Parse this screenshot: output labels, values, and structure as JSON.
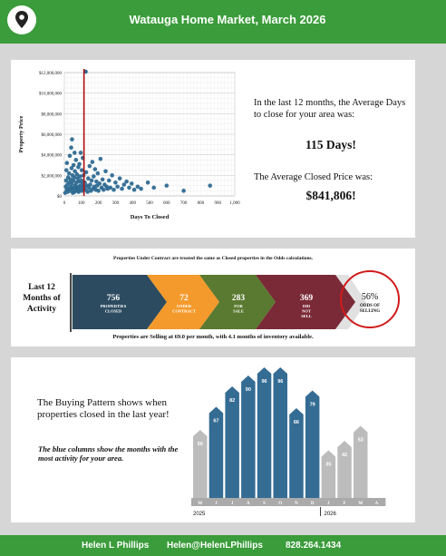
{
  "header": {
    "title": "Watauga Home Market, March 2026",
    "icon": "map-pin-icon"
  },
  "chart_data": [
    {
      "type": "scatter",
      "xlabel": "Days To Closed",
      "ylabel": "Property Price",
      "xlim": [
        0,
        1000
      ],
      "ylim": [
        0,
        12000000
      ],
      "x_ticks": [
        "0",
        "100",
        "200",
        "300",
        "400",
        "500",
        "600",
        "700",
        "800",
        "900",
        "1,000"
      ],
      "y_ticks": [
        "$0",
        "$2,000,000",
        "$4,000,000",
        "$6,000,000",
        "$8,000,000",
        "$10,000,000",
        "$12,000,000"
      ],
      "grid": true,
      "reference_line_x": 115,
      "reference_color": "#b01010",
      "point_color": "#2e6a92",
      "points": [
        [
          5,
          300000
        ],
        [
          8,
          900000
        ],
        [
          10,
          1500000
        ],
        [
          12,
          2500000
        ],
        [
          14,
          600000
        ],
        [
          15,
          3200000
        ],
        [
          18,
          1100000
        ],
        [
          20,
          400000
        ],
        [
          22,
          1800000
        ],
        [
          25,
          700000
        ],
        [
          28,
          2200000
        ],
        [
          30,
          1300000
        ],
        [
          32,
          3900000
        ],
        [
          35,
          500000
        ],
        [
          36,
          1600000
        ],
        [
          38,
          900000
        ],
        [
          40,
          4700000
        ],
        [
          42,
          2700000
        ],
        [
          44,
          1200000
        ],
        [
          46,
          700000
        ],
        [
          48,
          2000000
        ],
        [
          50,
          300000
        ],
        [
          52,
          1500000
        ],
        [
          54,
          3000000
        ],
        [
          56,
          800000
        ],
        [
          58,
          1800000
        ],
        [
          60,
          400000
        ],
        [
          62,
          2400000
        ],
        [
          64,
          1000000
        ],
        [
          66,
          600000
        ],
        [
          68,
          3500000
        ],
        [
          70,
          1300000
        ],
        [
          72,
          700000
        ],
        [
          74,
          2100000
        ],
        [
          76,
          500000
        ],
        [
          78,
          1700000
        ],
        [
          80,
          900000
        ],
        [
          82,
          2800000
        ],
        [
          84,
          400000
        ],
        [
          86,
          1400000
        ],
        [
          88,
          3100000
        ],
        [
          90,
          600000
        ],
        [
          92,
          1900000
        ],
        [
          94,
          1000000
        ],
        [
          96,
          4200000
        ],
        [
          98,
          800000
        ],
        [
          100,
          1500000
        ],
        [
          102,
          2500000
        ],
        [
          104,
          500000
        ],
        [
          106,
          1200000
        ],
        [
          108,
          3700000
        ],
        [
          110,
          700000
        ],
        [
          112,
          2000000
        ],
        [
          116,
          900000
        ],
        [
          120,
          1300000
        ],
        [
          124,
          600000
        ],
        [
          128,
          2300000
        ],
        [
          132,
          1000000
        ],
        [
          136,
          400000
        ],
        [
          140,
          1700000
        ],
        [
          144,
          800000
        ],
        [
          148,
          2900000
        ],
        [
          152,
          1100000
        ],
        [
          156,
          500000
        ],
        [
          160,
          1500000
        ],
        [
          164,
          3300000
        ],
        [
          168,
          700000
        ],
        [
          172,
          1900000
        ],
        [
          176,
          900000
        ],
        [
          180,
          2600000
        ],
        [
          184,
          600000
        ],
        [
          188,
          1400000
        ],
        [
          192,
          1000000
        ],
        [
          196,
          2200000
        ],
        [
          200,
          500000
        ],
        [
          206,
          1200000
        ],
        [
          212,
          3600000
        ],
        [
          218,
          800000
        ],
        [
          224,
          1600000
        ],
        [
          230,
          600000
        ],
        [
          236,
          1100000
        ],
        [
          242,
          2400000
        ],
        [
          248,
          900000
        ],
        [
          254,
          700000
        ],
        [
          262,
          1500000
        ],
        [
          270,
          800000
        ],
        [
          280,
          2000000
        ],
        [
          290,
          600000
        ],
        [
          300,
          1300000
        ],
        [
          312,
          900000
        ],
        [
          325,
          1700000
        ],
        [
          338,
          700000
        ],
        [
          350,
          1100000
        ],
        [
          365,
          1400000
        ],
        [
          380,
          800000
        ],
        [
          395,
          1200000
        ],
        [
          410,
          600000
        ],
        [
          430,
          900000
        ],
        [
          450,
          700000
        ],
        [
          490,
          1300000
        ],
        [
          525,
          800000
        ],
        [
          600,
          1000000
        ],
        [
          700,
          500000
        ],
        [
          855,
          1000000
        ],
        [
          125,
          12300000
        ],
        [
          45,
          5500000
        ],
        [
          60,
          4200000
        ]
      ]
    },
    {
      "type": "bar",
      "categories": [
        "M",
        "J",
        "J",
        "A",
        "S",
        "O",
        "N",
        "D",
        "J",
        "F",
        "M",
        "A"
      ],
      "values": [
        50,
        67,
        82,
        90,
        96,
        96,
        66,
        79,
        35,
        42,
        53,
        null
      ],
      "highlighted": [
        false,
        true,
        true,
        true,
        true,
        true,
        true,
        true,
        false,
        false,
        false,
        false
      ],
      "highlight_color": "#346c94",
      "base_color": "#bcbcbc",
      "year_labels": [
        "2025",
        "2026"
      ]
    }
  ],
  "stats": {
    "days_text": "In the last 12 months, the Average Days to close for your area was:",
    "days_value": "115 Days!",
    "price_text": "The Average Closed Price was:",
    "price_value": "$841,806!"
  },
  "odds": {
    "top_note": "Properties Under Contract are treated the same as Closed properties in the Odds calculations.",
    "bottom_note": "Properties are Selling at 69.0 per month, with 4.1 months of inventory available.",
    "last12": "Last 12 Months of Activity",
    "segments": [
      {
        "value": "756",
        "label": "PROPERTIES CLOSED",
        "color": "#2d4b60"
      },
      {
        "value": "72",
        "label": "UNDER CONTRACT",
        "color": "#f49a2c"
      },
      {
        "value": "283",
        "label": "FOR SALE",
        "color": "#5b7a31"
      },
      {
        "value": "369",
        "label": "DID NOT SELL",
        "color": "#7a2a37"
      }
    ],
    "odds_value": "56%",
    "odds_label": "ODDS OF SELLING",
    "circle_color": "#d01c1c"
  },
  "pattern": {
    "text": "The Buying Pattern shows when properties closed in the last year!",
    "note": "The blue columns show the months with the most activity for your area."
  },
  "footer": {
    "name": "Helen L Phillips",
    "email": "Helen@HelenLPhillips",
    "phone": "828.264.1434"
  }
}
